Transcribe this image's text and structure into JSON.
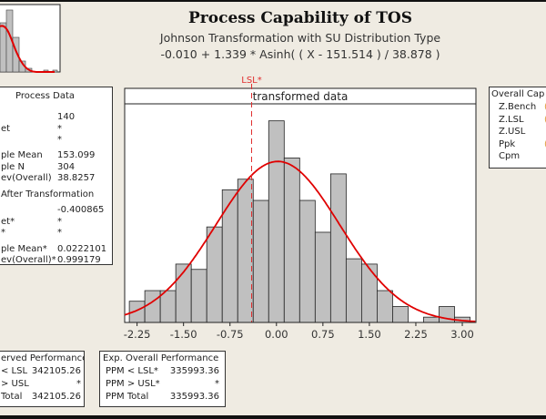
{
  "title": "Process Capability of TOS",
  "subtitle1": "Johnson Transformation with SU Distribution Type",
  "subtitle2": "-0.010 + 1.339 * Asinh( ( X - 151.514 ) / 38.878 )",
  "process_data": {
    "heading": "Process Data",
    "rows": [
      {
        "label": "",
        "value": "140"
      },
      {
        "label": "et",
        "value": "*"
      },
      {
        "label": "",
        "value": "*"
      },
      {
        "label": "ple Mean",
        "value": "153.099"
      },
      {
        "label": "ple N",
        "value": "304"
      },
      {
        "label": "ev(Overall)",
        "value": "38.8257"
      },
      {
        "label": "After Transformation",
        "value": ""
      },
      {
        "label": "",
        "value": "-0.400865"
      },
      {
        "label": "et*",
        "value": "*"
      },
      {
        "label": "*",
        "value": "*"
      },
      {
        "label": "ple Mean*",
        "value": "0.0222101"
      },
      {
        "label": "ev(Overall)*",
        "value": "0.999179"
      }
    ]
  },
  "observed_performance": {
    "heading": "erved Performance",
    "rows": [
      {
        "label": "< LSL",
        "value": "342105.26"
      },
      {
        "label": "> USL",
        "value": "*"
      },
      {
        "label": "Total",
        "value": "342105.26"
      }
    ]
  },
  "expected_performance": {
    "heading": "Exp. Overall Performance",
    "rows": [
      {
        "label": "PPM < LSL*",
        "value": "335993.36"
      },
      {
        "label": "PPM > USL*",
        "value": "*"
      },
      {
        "label": "PPM Total",
        "value": "335993.36"
      }
    ]
  },
  "overall_capability": {
    "heading": "Overall Cap",
    "rows": [
      "Z.Bench",
      "Z.LSL",
      "Z.USL",
      "Ppk",
      "Cpm"
    ]
  },
  "chart_data": {
    "type": "bar",
    "panel_title": "transformed data",
    "bin_centers": [
      -2.25,
      -2.0,
      -1.75,
      -1.5,
      -1.25,
      -1.0,
      -0.75,
      -0.5,
      -0.25,
      0.0,
      0.25,
      0.5,
      0.75,
      1.0,
      1.25,
      1.5,
      1.75,
      2.0,
      2.25,
      2.5,
      2.75,
      3.0
    ],
    "counts": [
      4,
      6,
      6,
      11,
      10,
      18,
      25,
      27,
      23,
      38,
      31,
      23,
      17,
      28,
      12,
      11,
      6,
      3,
      0,
      1,
      3,
      1
    ],
    "bin_width": 0.25,
    "xticks": [
      "-2.25",
      "-1.50",
      "-0.75",
      "0.00",
      "0.75",
      "1.50",
      "2.25",
      "3.00"
    ],
    "xlim": [
      -2.45,
      3.22
    ],
    "ylim": [
      0,
      40
    ],
    "fit_curve": {
      "type": "normal",
      "mean": 0.0222101,
      "sd": 0.999179,
      "n": 304,
      "color": "#e00000"
    },
    "lsl": {
      "label": "LSL*",
      "value": -0.400865,
      "color": "#e03030"
    },
    "bar_color": "#c0c0c0"
  }
}
